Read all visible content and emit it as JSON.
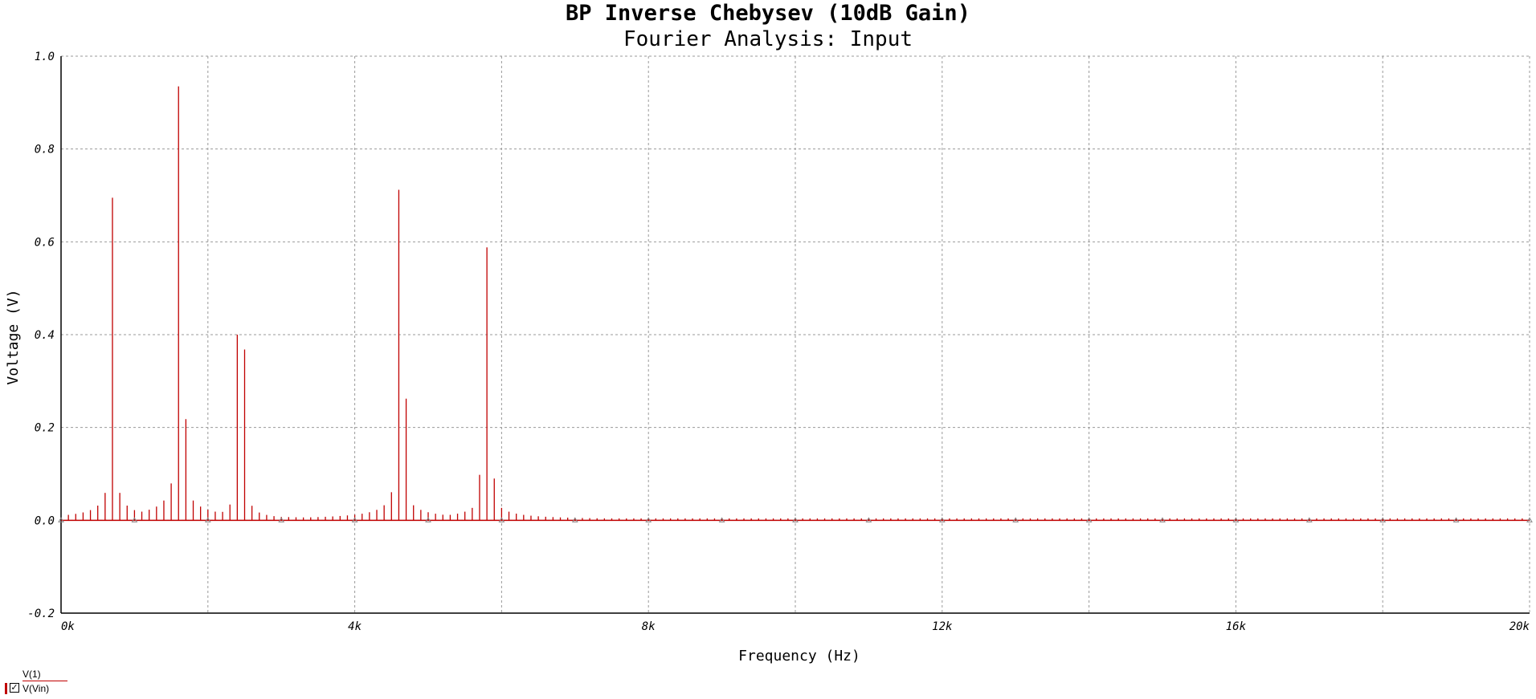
{
  "chart_data": {
    "type": "bar",
    "title": "BP Inverse Chebysev (10dB Gain)",
    "subtitle": "Fourier Analysis: Input",
    "xlabel": "Frequency (Hz)",
    "ylabel": "Voltage (V)",
    "xlim": [
      0,
      20000
    ],
    "ylim": [
      -0.2,
      1.0
    ],
    "grid": true,
    "x_ticks": [
      {
        "value": 0,
        "label": "0k"
      },
      {
        "value": 4000,
        "label": "4k"
      },
      {
        "value": 8000,
        "label": "8k"
      },
      {
        "value": 12000,
        "label": "12k"
      },
      {
        "value": 16000,
        "label": "16k"
      },
      {
        "value": 20000,
        "label": "20k"
      }
    ],
    "x_grid": [
      2000,
      4000,
      6000,
      8000,
      10000,
      12000,
      14000,
      16000,
      18000,
      20000
    ],
    "y_ticks": [
      {
        "value": 1.0,
        "label": "1.0"
      },
      {
        "value": 0.8,
        "label": "0.8"
      },
      {
        "value": 0.6,
        "label": "0.6"
      },
      {
        "value": 0.4,
        "label": "0.4"
      },
      {
        "value": 0.2,
        "label": "0.2"
      },
      {
        "value": 0.0,
        "label": "0.0"
      },
      {
        "value": -0.2,
        "label": "-0.2"
      }
    ],
    "series": [
      {
        "name": "V(Vin)",
        "color": "#c00000",
        "spacing": 100,
        "peaks": [
          {
            "x": 700,
            "y": 0.695
          },
          {
            "x": 1600,
            "y": 0.935
          },
          {
            "x": 1700,
            "y": 0.218
          },
          {
            "x": 2400,
            "y": 0.4
          },
          {
            "x": 2500,
            "y": 0.368
          },
          {
            "x": 4600,
            "y": 0.712
          },
          {
            "x": 4700,
            "y": 0.262
          },
          {
            "x": 5800,
            "y": 0.588
          },
          {
            "x": 5700,
            "y": 0.098
          },
          {
            "x": 5900,
            "y": 0.09
          }
        ],
        "floor": 0.004
      }
    ],
    "legend": [
      "V(1)",
      "V(Vin)"
    ],
    "legend_position": "bottom-left"
  }
}
